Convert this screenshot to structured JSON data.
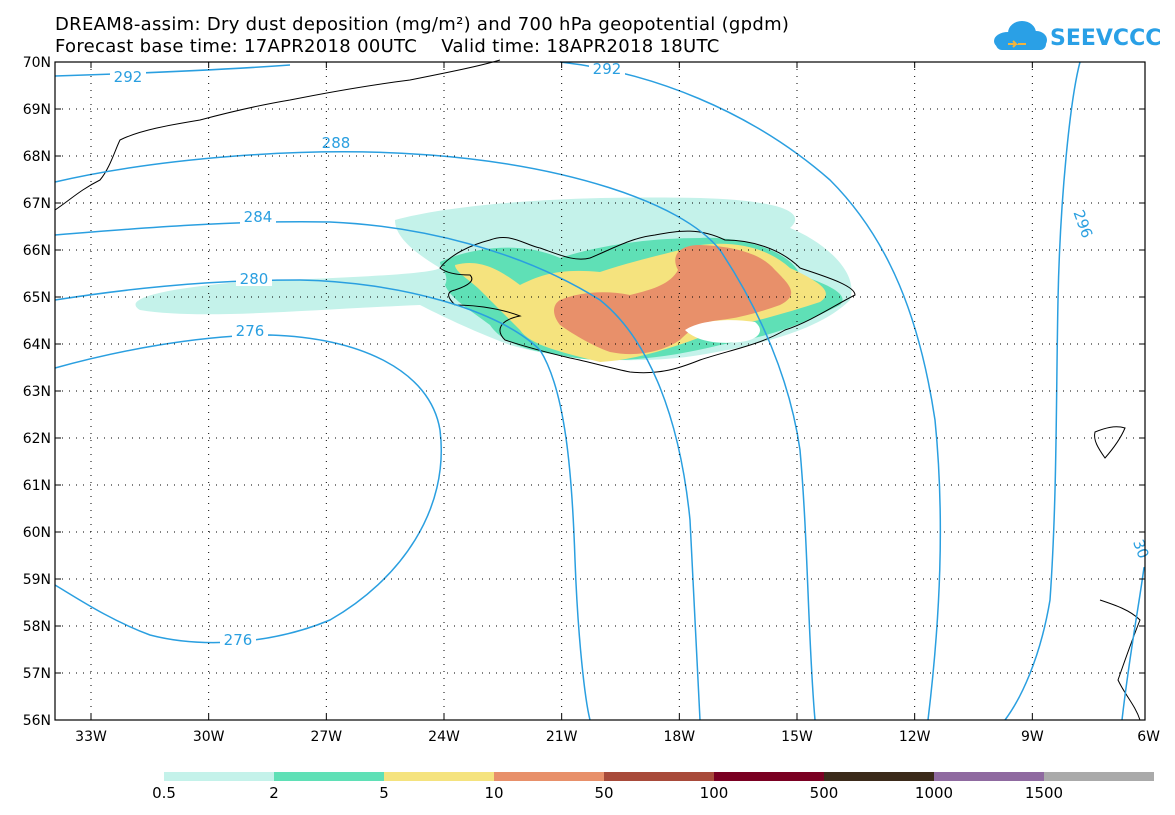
{
  "title": {
    "line1": "DREAM8-assim: Dry dust deposition (mg/m²) and 700 hPa geopotential (gpdm)",
    "line2": "Forecast base time: 17APR2018 00UTC    Valid time: 18APR2018 18UTC"
  },
  "logo": {
    "text": "SEEVCCC"
  },
  "axes": {
    "lat_labels": [
      "70N",
      "69N",
      "68N",
      "67N",
      "66N",
      "65N",
      "64N",
      "63N",
      "62N",
      "61N",
      "60N",
      "59N",
      "58N",
      "57N",
      "56N"
    ],
    "lon_labels": [
      "33W",
      "30W",
      "27W",
      "24W",
      "21W",
      "18W",
      "15W",
      "12W",
      "9W",
      "6W"
    ]
  },
  "contour_labels": [
    "292",
    "292",
    "288",
    "284",
    "280",
    "276",
    "276",
    "296",
    "30"
  ],
  "colorbar": {
    "labels": [
      "0.5",
      "2",
      "5",
      "10",
      "50",
      "100",
      "500",
      "1000",
      "1500"
    ],
    "colors": [
      "#c4f2ea",
      "#5fe0b6",
      "#f5e37e",
      "#e8906a",
      "#a84a3a",
      "#7a0022",
      "#3b2a1a",
      "#8f6aa0",
      "#aaaaaa"
    ]
  },
  "colors": {
    "contour": "#2a9fe0",
    "coast": "#000000"
  }
}
